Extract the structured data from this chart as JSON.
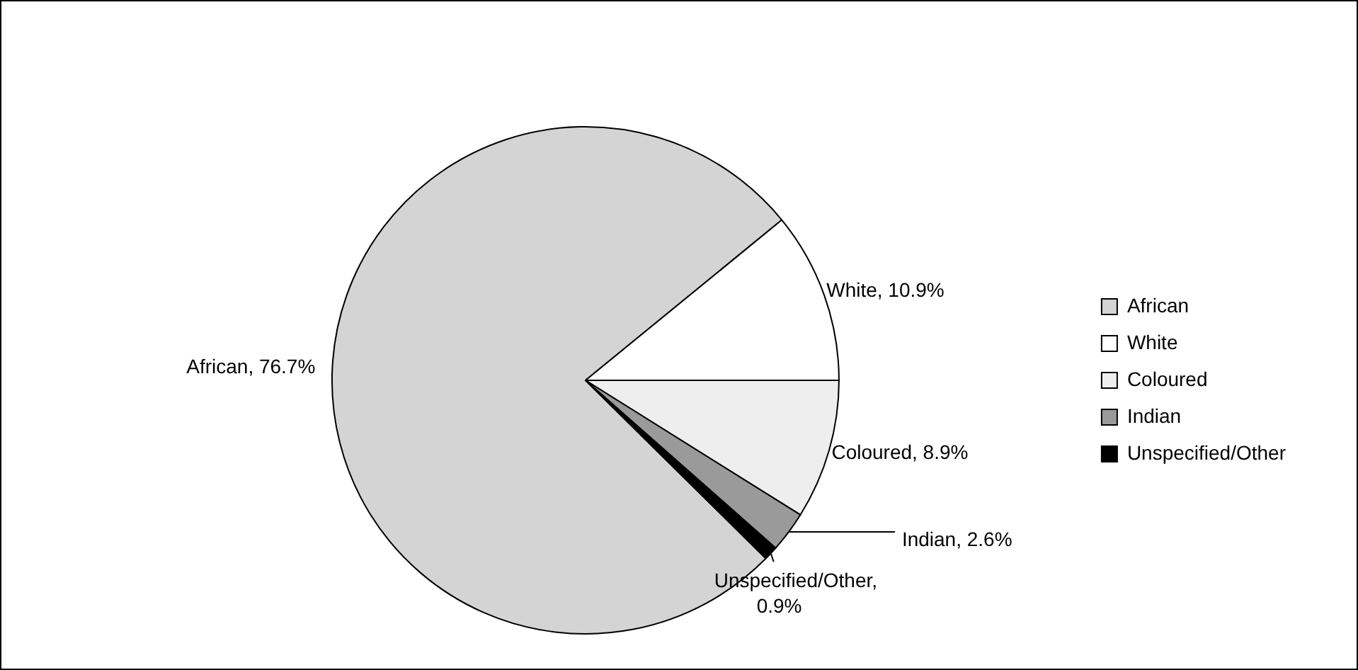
{
  "chart_data": {
    "type": "pie",
    "categories": [
      "African",
      "White",
      "Coloured",
      "Indian",
      "Unspecified/Other"
    ],
    "values": [
      76.7,
      10.9,
      8.9,
      2.6,
      0.9
    ],
    "colors": [
      "#d4d4d4",
      "#ffffff",
      "#eeeeee",
      "#9a9a9a",
      "#000000"
    ],
    "value_labels": [
      "African, 76.7%",
      "White, 10.9%",
      "Coloured, 8.9%",
      "Indian, 2.6%",
      "Unspecified/Other, 0.9%"
    ],
    "legend": "right"
  }
}
